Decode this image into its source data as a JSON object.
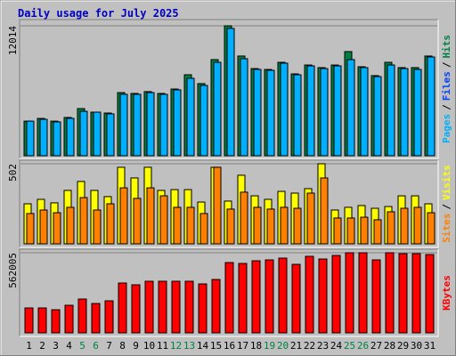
{
  "title": "Daily usage for July 2025",
  "title_color": "#0000c0",
  "separator": "/",
  "chart_data": [
    {
      "type": "bar",
      "ylim": [
        0,
        12014
      ],
      "yticks": [
        12014
      ],
      "series": [
        {
          "name": "Hits",
          "color": "#008040",
          "values": [
            3200,
            3450,
            3200,
            3540,
            4360,
            4030,
            3950,
            5840,
            5760,
            5930,
            5760,
            6170,
            7490,
            6670,
            8890,
            12014,
            9220,
            8060,
            7980,
            8640,
            7570,
            8390,
            8150,
            8390,
            9630,
            8230,
            7410,
            8640,
            8150,
            8150,
            9220
          ]
        },
        {
          "name": "Pages",
          "color": "#00b0ff",
          "values": [
            3200,
            3370,
            3130,
            3460,
            4110,
            4030,
            3870,
            5680,
            5680,
            5840,
            5680,
            6090,
            7160,
            6500,
            8640,
            11770,
            8970,
            7980,
            7900,
            8560,
            7490,
            8310,
            8060,
            8310,
            8890,
            8150,
            7320,
            8390,
            8060,
            7980,
            9130
          ]
        }
      ],
      "other_label": "Files",
      "other_color": "#0040ff"
    },
    {
      "type": "bar",
      "ylim": [
        0,
        502
      ],
      "yticks": [
        502
      ],
      "series": [
        {
          "name": "Visits",
          "color": "#ffff00",
          "values": [
            251,
            279,
            257,
            335,
            391,
            335,
            296,
            480,
            413,
            480,
            335,
            340,
            340,
            262,
            480,
            268,
            430,
            301,
            279,
            329,
            318,
            346,
            502,
            212,
            229,
            240,
            223,
            234,
            301,
            301,
            251
          ]
        },
        {
          "name": "Sites",
          "color": "#ff8000",
          "values": [
            190,
            212,
            195,
            229,
            290,
            212,
            251,
            351,
            285,
            351,
            301,
            229,
            229,
            190,
            480,
            218,
            324,
            229,
            218,
            229,
            223,
            318,
            413,
            162,
            162,
            167,
            151,
            201,
            223,
            229,
            195
          ]
        }
      ]
    },
    {
      "type": "bar",
      "ylim": [
        0,
        562005
      ],
      "yticks": [
        562005
      ],
      "series": [
        {
          "name": "KBytes",
          "color": "#ff0000",
          "values": [
            174800,
            174800,
            162300,
            193600,
            237300,
            206000,
            224800,
            349700,
            337200,
            362100,
            362100,
            362100,
            362100,
            343400,
            374600,
            493300,
            487000,
            505800,
            512000,
            524500,
            480800,
            537000,
            518200,
            543200,
            562005,
            562005,
            512000,
            562005,
            555700,
            555700,
            549500
          ]
        }
      ],
      "categories": [
        "1",
        "2",
        "3",
        "4",
        "5",
        "6",
        "7",
        "8",
        "9",
        "10",
        "11",
        "12",
        "13",
        "14",
        "15",
        "16",
        "17",
        "18",
        "19",
        "20",
        "21",
        "22",
        "23",
        "24",
        "25",
        "26",
        "27",
        "28",
        "29",
        "30",
        "31"
      ],
      "category_colors": [
        "#000000",
        "#000000",
        "#000000",
        "#000000",
        "#008040",
        "#008040",
        "#000000",
        "#000000",
        "#000000",
        "#000000",
        "#000000",
        "#008040",
        "#008040",
        "#000000",
        "#000000",
        "#000000",
        "#000000",
        "#000000",
        "#008040",
        "#008040",
        "#000000",
        "#000000",
        "#000000",
        "#000000",
        "#008040",
        "#008040",
        "#000000",
        "#000000",
        "#000000",
        "#000000",
        "#000000"
      ]
    }
  ]
}
